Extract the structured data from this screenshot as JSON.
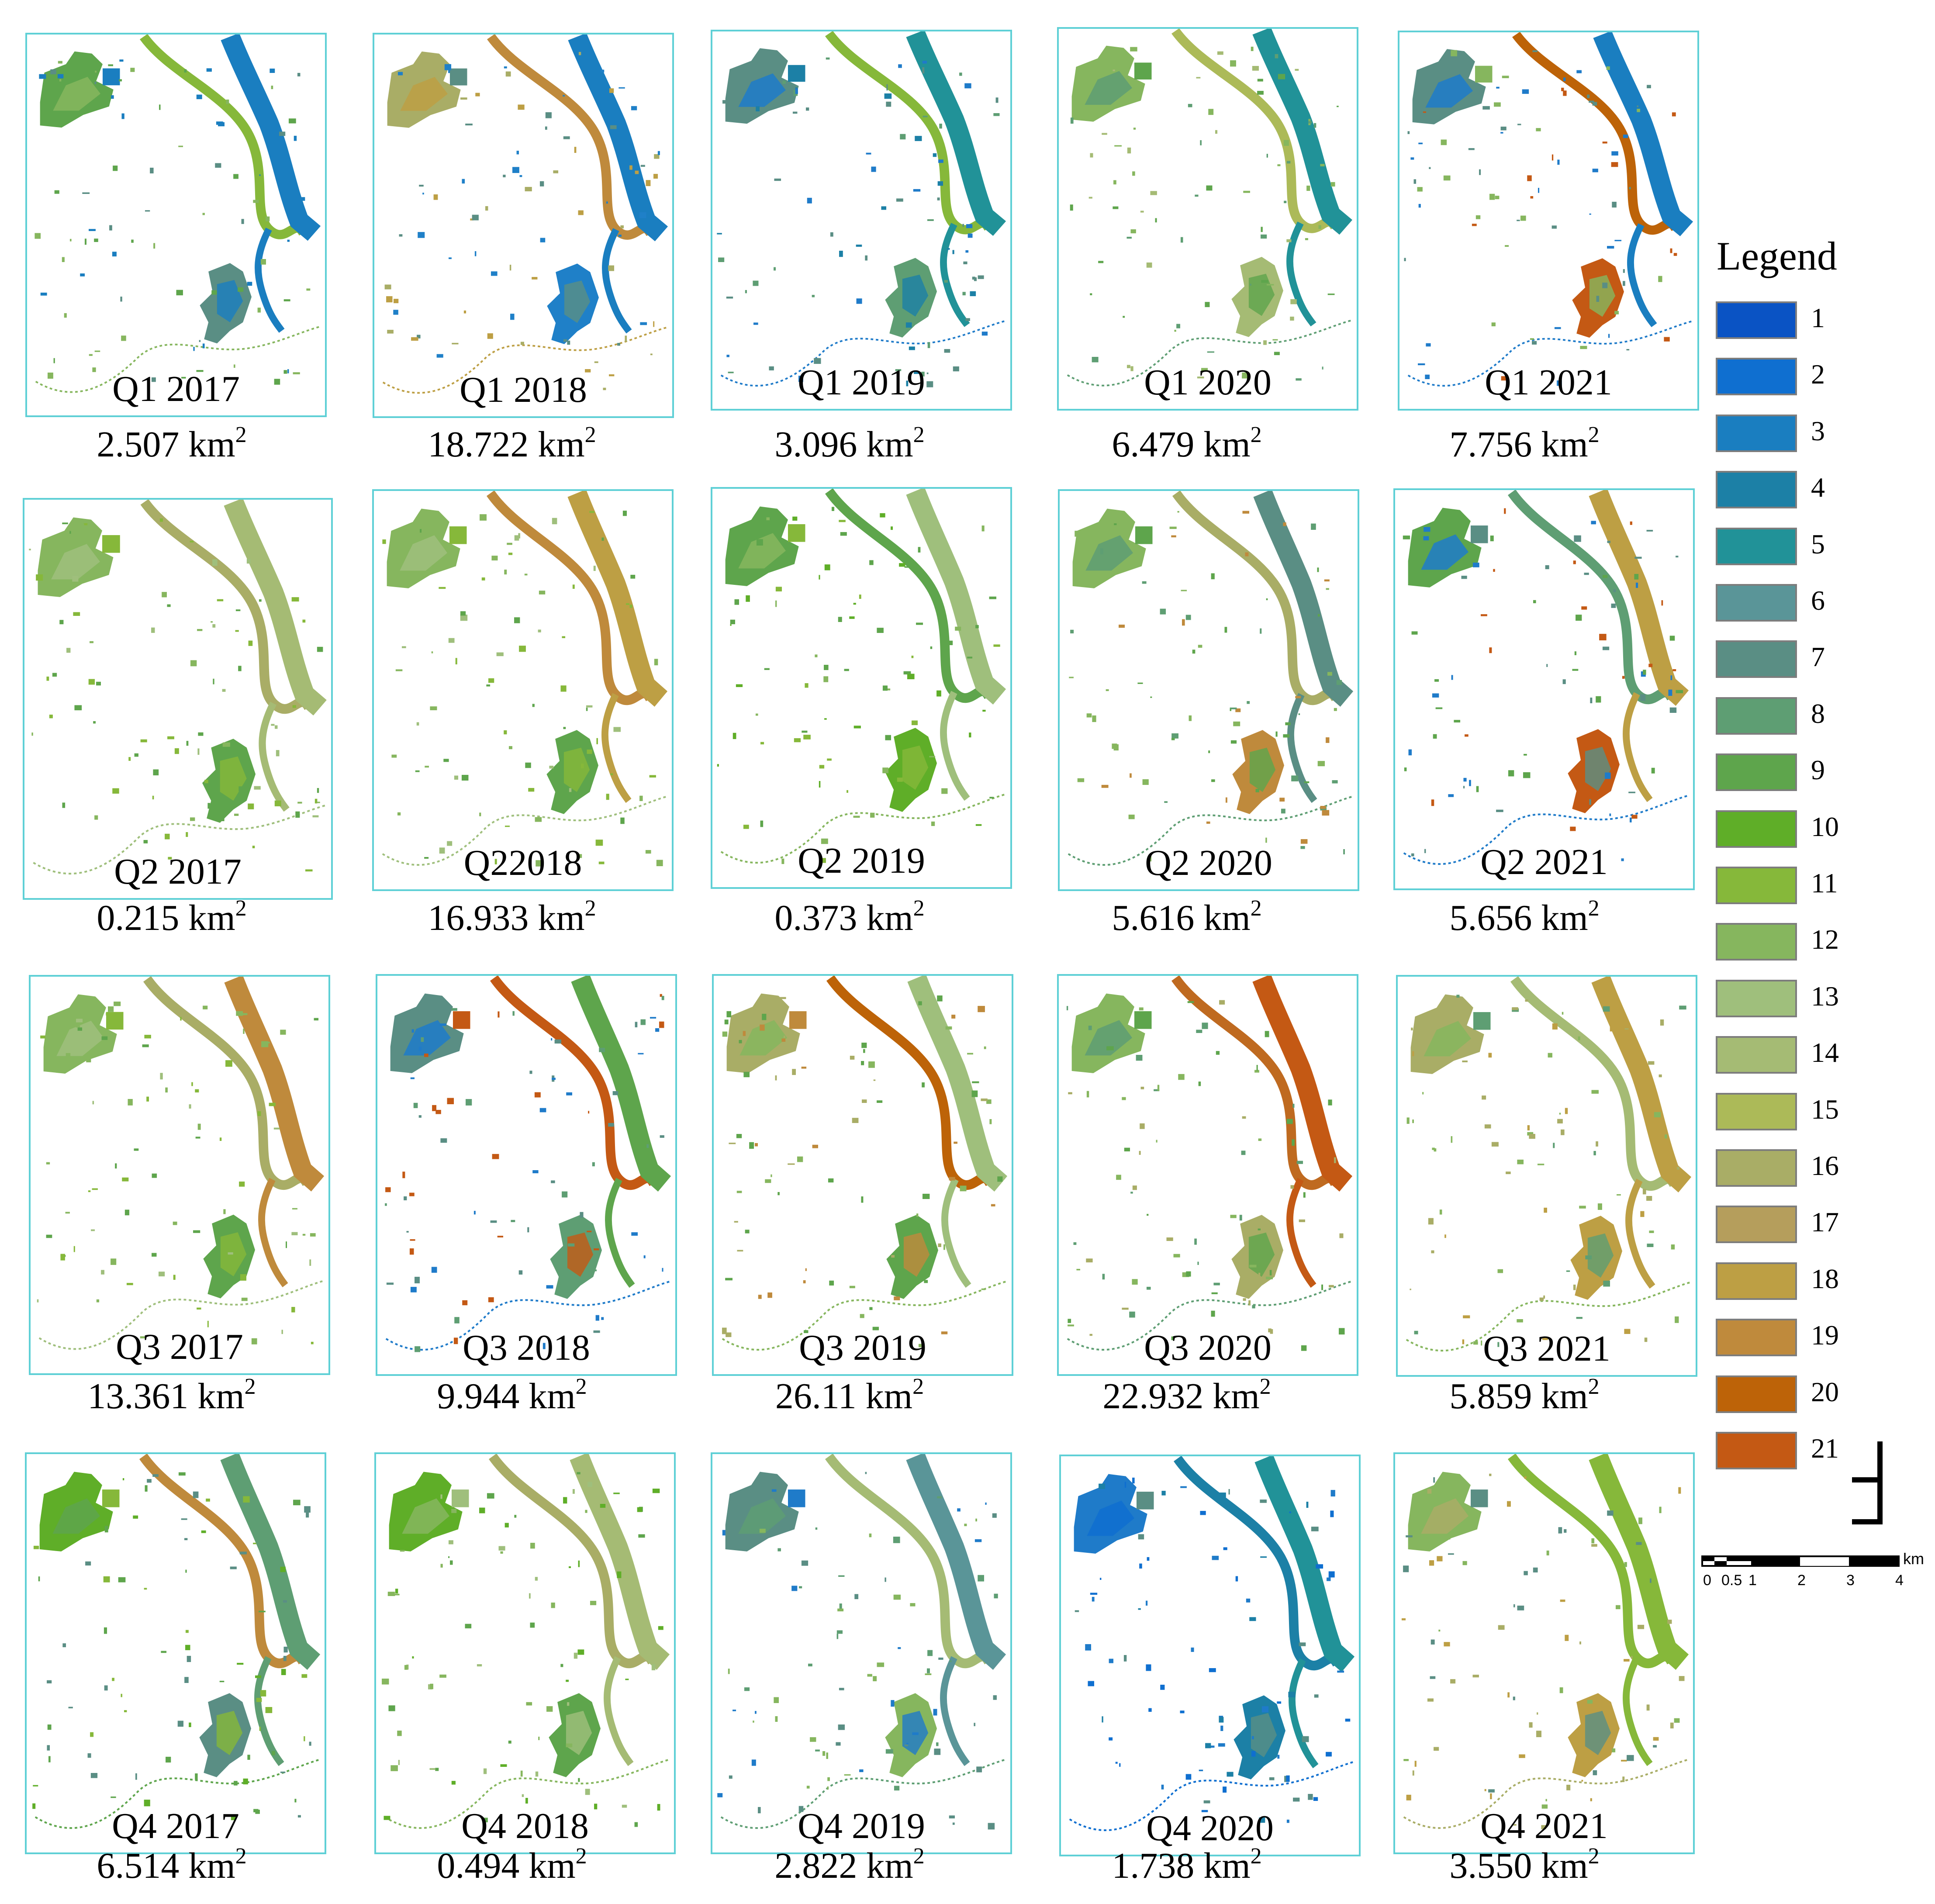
{
  "legend": {
    "title": "Legend",
    "items": [
      {
        "label": "1",
        "color": "#0a53c4"
      },
      {
        "label": "2",
        "color": "#0f6fd0"
      },
      {
        "label": "3",
        "color": "#1a7ec0"
      },
      {
        "label": "4",
        "color": "#1c80a6"
      },
      {
        "label": "5",
        "color": "#219298"
      },
      {
        "label": "6",
        "color": "#5a9598"
      },
      {
        "label": "7",
        "color": "#5a8e84"
      },
      {
        "label": "8",
        "color": "#5e9e73"
      },
      {
        "label": "9",
        "color": "#5ea54c"
      },
      {
        "label": "10",
        "color": "#5fae28"
      },
      {
        "label": "11",
        "color": "#86b83a"
      },
      {
        "label": "12",
        "color": "#86b65e"
      },
      {
        "label": "13",
        "color": "#9fbf7c"
      },
      {
        "label": "14",
        "color": "#a5bb74"
      },
      {
        "label": "15",
        "color": "#acba58"
      },
      {
        "label": "16",
        "color": "#a9ad66"
      },
      {
        "label": "17",
        "color": "#b59e5c"
      },
      {
        "label": "18",
        "color": "#bd9f44"
      },
      {
        "label": "19",
        "color": "#bf8a3c"
      },
      {
        "label": "20",
        "color": "#bd6308"
      },
      {
        "label": "21",
        "color": "#c45914"
      }
    ]
  },
  "scalebar": {
    "unit": "km",
    "ticks": [
      "0",
      "0.5",
      "1",
      "2",
      "3",
      "4"
    ]
  },
  "panels": [
    {
      "label": "Q1 2017",
      "area": "2.507 km",
      "palette": [
        "#5ea54c",
        "#86b65e",
        "#5a8e84",
        "#1a7ec0"
      ],
      "river": "#86b83a",
      "river2": "#1a7ec0"
    },
    {
      "label": "Q1 2018",
      "area": "18.722 km",
      "palette": [
        "#a9ad66",
        "#bd9f44",
        "#1f80c8",
        "#5a8e84"
      ],
      "river": "#bf8a3c",
      "river2": "#1a7ec0"
    },
    {
      "label": "Q1 2019",
      "area": "3.096 km",
      "palette": [
        "#5a8e84",
        "#1f7bc9",
        "#5e9e73",
        "#1c80a6"
      ],
      "river": "#86b83a",
      "river2": "#219298"
    },
    {
      "label": "Q1 2020",
      "area": "6.479 km",
      "palette": [
        "#86b65e",
        "#5e9e73",
        "#a5bb74",
        "#5ea54c"
      ],
      "river": "#acba58",
      "river2": "#219298"
    },
    {
      "label": "Q1 2021",
      "area": "7.756 km",
      "palette": [
        "#5a8e84",
        "#1f7bc9",
        "#c45914",
        "#86b65e"
      ],
      "river": "#bd6308",
      "river2": "#1a7ec0"
    },
    {
      "label": "Q2 2017",
      "area": "0.215 km",
      "palette": [
        "#86b65e",
        "#9fbf7c",
        "#5ea54c",
        "#86b83a"
      ],
      "river": "#a9ad66",
      "river2": "#a5bb74"
    },
    {
      "label": "Q22018",
      "area": "16.933 km",
      "palette": [
        "#86b65e",
        "#9fbf7c",
        "#5ea54c",
        "#86b83a"
      ],
      "river": "#bf8a3c",
      "river2": "#bd9f44"
    },
    {
      "label": "Q2 2019",
      "area": "0.373 km",
      "palette": [
        "#5ea54c",
        "#86b65e",
        "#5fae28",
        "#86b83a"
      ],
      "river": "#5ea54c",
      "river2": "#9fbf7c"
    },
    {
      "label": "Q2 2020",
      "area": "5.616 km",
      "palette": [
        "#86b65e",
        "#5e9e73",
        "#bf8a3c",
        "#5ea54c"
      ],
      "river": "#a9ad66",
      "river2": "#5a8e84"
    },
    {
      "label": "Q2 2021",
      "area": "5.656 km",
      "palette": [
        "#5ea54c",
        "#1f7bc9",
        "#c45914",
        "#5a8e84"
      ],
      "river": "#5e9e73",
      "river2": "#bd9f44"
    },
    {
      "label": "Q3 2017",
      "area": "13.361 km",
      "palette": [
        "#86b65e",
        "#9fbf7c",
        "#5ea54c",
        "#86b83a"
      ],
      "river": "#a9ad66",
      "river2": "#bf8a3c"
    },
    {
      "label": "Q3 2018",
      "area": "9.944 km",
      "palette": [
        "#5a8e84",
        "#1f7bc9",
        "#5e9e73",
        "#c45914"
      ],
      "river": "#c45914",
      "river2": "#5ea54c"
    },
    {
      "label": "Q3 2019",
      "area": "26.11 km",
      "palette": [
        "#a9ad66",
        "#86b65e",
        "#5ea54c",
        "#bf8a3c"
      ],
      "river": "#bd6308",
      "river2": "#9fbf7c"
    },
    {
      "label": "Q3 2020",
      "area": "22.932 km",
      "palette": [
        "#86b65e",
        "#5e9e73",
        "#a9ad66",
        "#5ea54c"
      ],
      "river": "#bf6a20",
      "river2": "#c45914"
    },
    {
      "label": "Q3 2021",
      "area": "5.859 km",
      "palette": [
        "#a9ad66",
        "#86b65e",
        "#bd9f44",
        "#5e9e73"
      ],
      "river": "#a5bb74",
      "river2": "#bd9f44"
    },
    {
      "label": "Q4 2017",
      "area": "6.514 km",
      "palette": [
        "#5fae28",
        "#5ea54c",
        "#5a8e84",
        "#86b83a"
      ],
      "river": "#bf8a3c",
      "river2": "#5e9e73"
    },
    {
      "label": "Q4 2018",
      "area": "0.494 km",
      "palette": [
        "#5fae28",
        "#86b65e",
        "#5ea54c",
        "#9fbf7c"
      ],
      "river": "#a9ad66",
      "river2": "#a5bb74"
    },
    {
      "label": "Q4 2019",
      "area": "2.822 km",
      "palette": [
        "#5a8e84",
        "#5e9e73",
        "#86b65e",
        "#1f7bc9"
      ],
      "river": "#a5bb74",
      "river2": "#5a9598"
    },
    {
      "label": "Q4 2020",
      "area": "1.738 km",
      "palette": [
        "#1f7bc9",
        "#0f6fd0",
        "#1c80a6",
        "#5a8e84"
      ],
      "river": "#1c80a6",
      "river2": "#219298"
    },
    {
      "label": "Q4 2021",
      "area": "3.550 km",
      "palette": [
        "#86b65e",
        "#a9ad66",
        "#bd9f44",
        "#5a8e84"
      ],
      "river": "#86b83a",
      "river2": "#86b83a"
    }
  ]
}
